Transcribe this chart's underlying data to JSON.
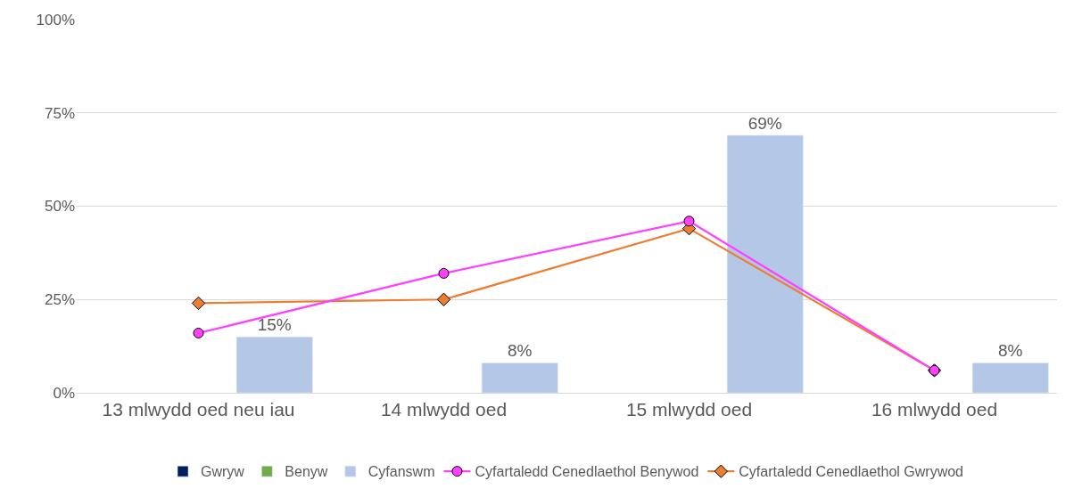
{
  "chart_data": {
    "type": "bar",
    "categories": [
      "13 mlwydd oed neu iau",
      "14 mlwydd oed",
      "15 mlwydd oed",
      "16 mlwydd oed"
    ],
    "series": [
      {
        "name": "Gwryw",
        "color": "#002060",
        "values": [
          null,
          null,
          null,
          null
        ]
      },
      {
        "name": "Benyw",
        "color": "#70ad47",
        "values": [
          null,
          null,
          null,
          null
        ]
      },
      {
        "name": "Cyfanswm",
        "color": "#b4c7e7",
        "values": [
          15,
          8,
          69,
          8
        ],
        "value_labels": [
          "15%",
          "8%",
          "69%",
          "8%"
        ]
      },
      {
        "name": "Cyfartaledd Cenedlaethol Benywod",
        "type": "line",
        "color": "#ff40ff",
        "marker": "circle",
        "values": [
          16,
          32,
          46,
          6
        ]
      },
      {
        "name": "Cyfartaledd Cenedlaethol Gwrywod",
        "type": "line",
        "color": "#ed7d31",
        "marker": "diamond",
        "values": [
          24,
          25,
          44,
          6
        ]
      }
    ],
    "ylim": [
      0,
      100
    ],
    "yticks": [
      {
        "value": 0,
        "label": "0%"
      },
      {
        "value": 25,
        "label": "25%"
      },
      {
        "value": 50,
        "label": "50%"
      },
      {
        "value": 75,
        "label": "75%"
      },
      {
        "value": 100,
        "label": "100%"
      }
    ],
    "grid": "y",
    "legend": "bottom"
  }
}
